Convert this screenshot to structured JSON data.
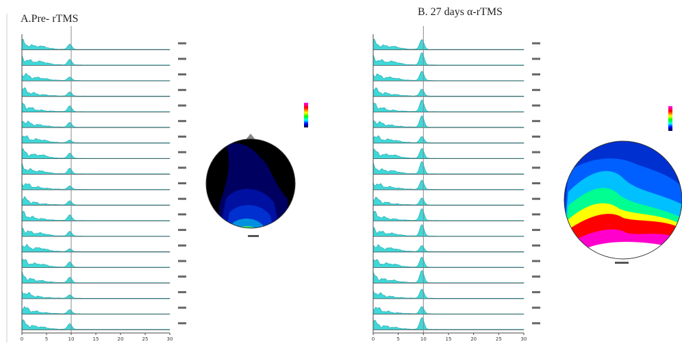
{
  "panels": [
    {
      "title": "A.Pre- rTMS",
      "xticks": [
        0,
        5,
        10,
        15,
        20,
        25,
        30
      ]
    },
    {
      "title": "B. 27 days α-rTMS",
      "xticks": [
        0,
        5,
        10,
        15,
        20,
        25,
        30
      ]
    }
  ]
}
